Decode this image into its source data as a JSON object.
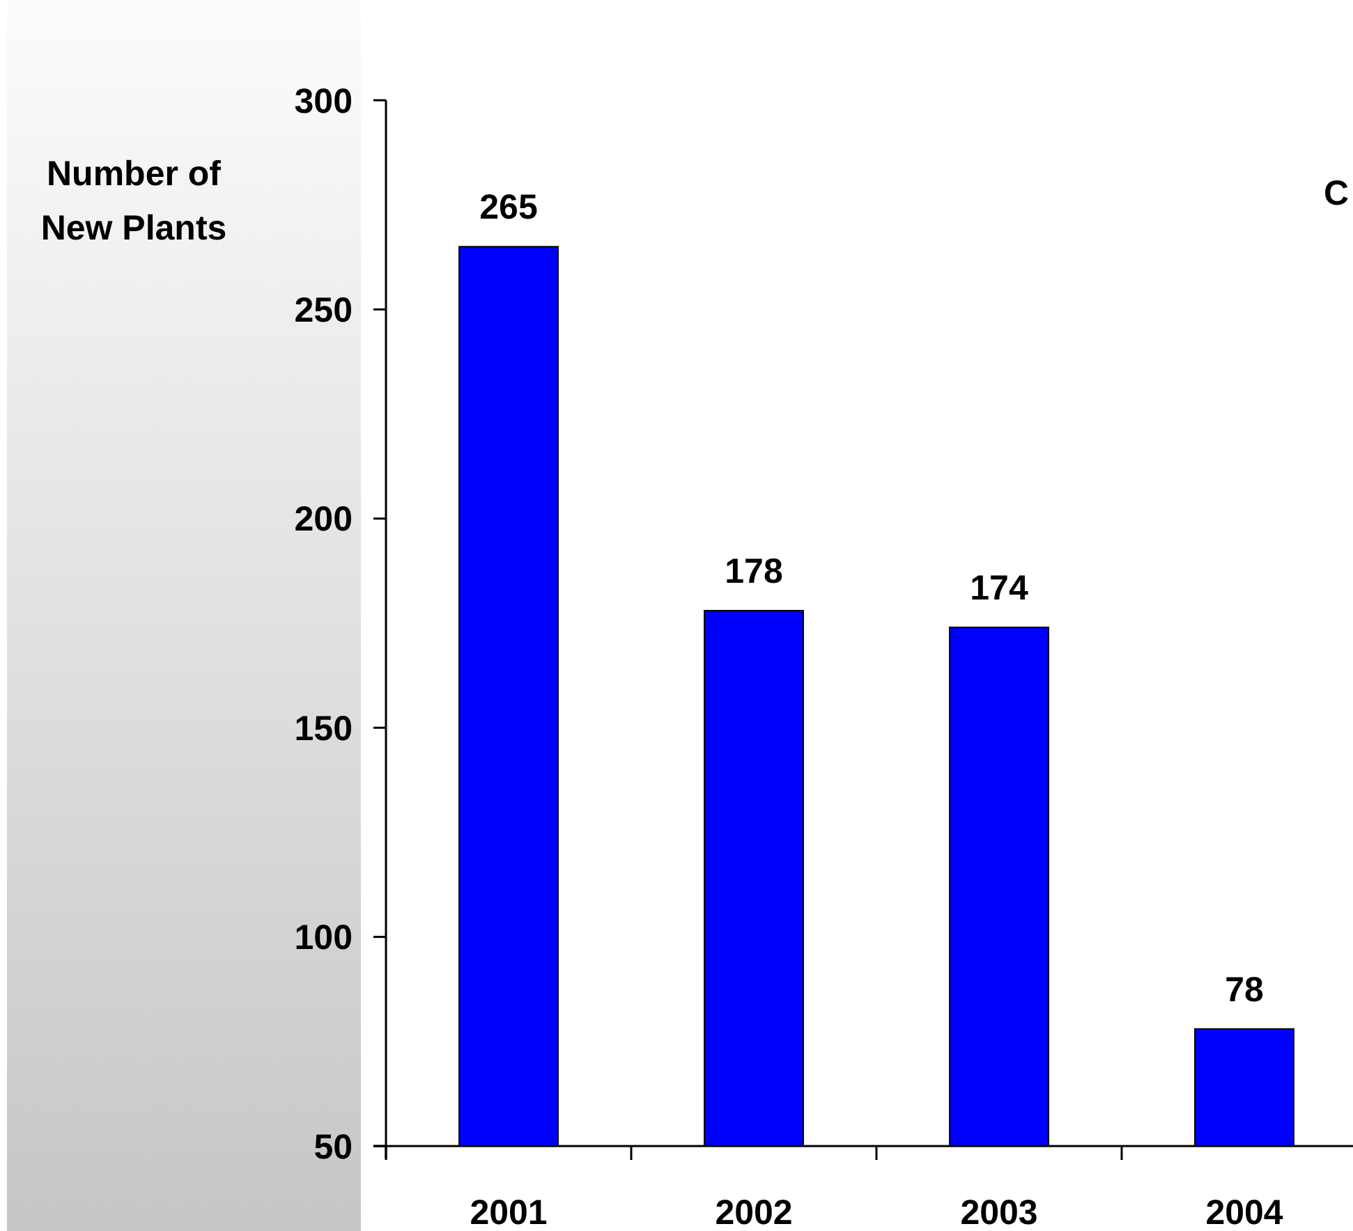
{
  "chart_data": {
    "type": "bar",
    "ylabel": "Number of\nNew Plants",
    "categories": [
      "2001",
      "2002",
      "2003",
      "2004"
    ],
    "values": [
      265,
      178,
      174,
      78
    ],
    "color": "#0000ff",
    "ylim": [
      50,
      300
    ],
    "yticks": [
      50,
      100,
      150,
      200,
      250,
      300
    ],
    "data_labels": true,
    "annotations": [
      "C"
    ]
  }
}
